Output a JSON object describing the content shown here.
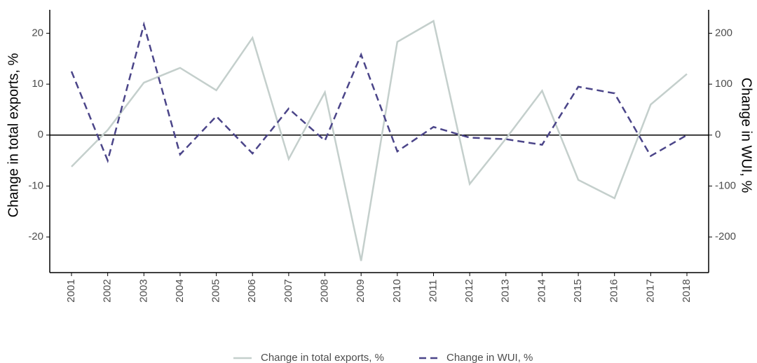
{
  "chart_data": {
    "type": "line",
    "categories": [
      "2001",
      "2002",
      "2003",
      "2004",
      "2005",
      "2006",
      "2007",
      "2008",
      "2009",
      "2010",
      "2011",
      "2012",
      "2013",
      "2014",
      "2015",
      "2016",
      "2017",
      "2018"
    ],
    "y_label": "Change in total exports, %",
    "y2_label": "Change in WUI, %",
    "ylim": [
      -27,
      24.6
    ],
    "yticks": [
      -20,
      -10,
      0,
      10,
      20
    ],
    "y2lim": [
      -270,
      246
    ],
    "y2ticks": [
      -200,
      -100,
      0,
      100,
      200
    ],
    "reference_line": 0,
    "legend": "bottom",
    "series": [
      {
        "name": "Change in total exports, %",
        "color": "#c4cfcc",
        "dash": "solid",
        "values": [
          -6.2,
          1.0,
          10.3,
          13.2,
          8.8,
          19.1,
          -4.7,
          8.4,
          -24.7,
          18.3,
          22.4,
          -9.6,
          -0.7,
          8.7,
          -8.8,
          -12.4,
          6.0,
          12.0
        ]
      },
      {
        "name": "Change in WUI, %",
        "color": "#4b4589",
        "dash": "dashed",
        "axis": "y2",
        "values": [
          125,
          -50,
          217,
          -38,
          37,
          -36,
          52,
          -11,
          158,
          -32,
          16,
          -5,
          -8,
          -19,
          95,
          82,
          -41,
          0
        ]
      }
    ]
  }
}
